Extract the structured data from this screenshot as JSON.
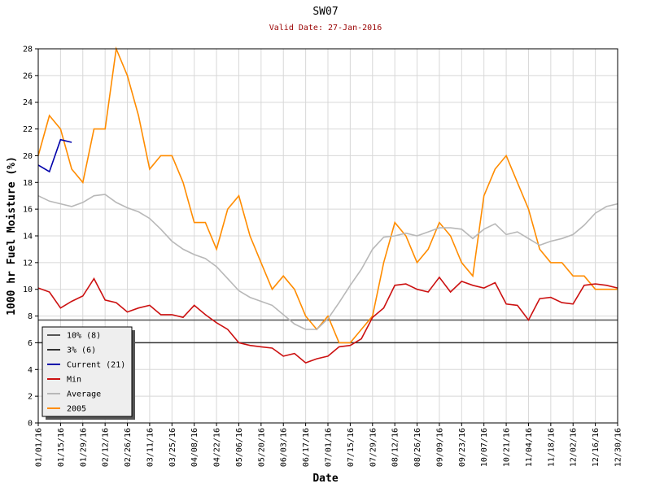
{
  "chart_data": {
    "type": "line",
    "title": "SW07",
    "subtitle": "Valid Date: 27-Jan-2016",
    "x_label": "Date",
    "y_label": "1000 hr Fuel Moisture (%)",
    "ylim": [
      0,
      28
    ],
    "yticks": [
      0,
      2,
      4,
      6,
      8,
      10,
      12,
      14,
      16,
      18,
      20,
      22,
      24,
      26,
      28
    ],
    "xlim": [
      "01/01/16",
      "12/30/16"
    ],
    "xticks": [
      "01/01/16",
      "01/15/16",
      "01/29/16",
      "02/12/16",
      "02/26/16",
      "03/11/16",
      "03/25/16",
      "04/08/16",
      "04/22/16",
      "05/06/16",
      "05/20/16",
      "06/03/16",
      "06/17/16",
      "07/01/16",
      "07/15/16",
      "07/29/16",
      "08/12/16",
      "08/26/16",
      "09/09/16",
      "09/23/16",
      "10/07/16",
      "10/21/16",
      "11/04/16",
      "11/18/16",
      "12/02/16",
      "12/16/16",
      "12/30/16"
    ],
    "grid": true,
    "legend": "lower left",
    "reference_lines": [
      {
        "name": "10% (8)",
        "color": "#555555",
        "value": 7.7
      },
      {
        "name": "3% (6)",
        "color": "#333333",
        "value": 6
      }
    ],
    "x": [
      "01/01/16",
      "01/08/16",
      "01/15/16",
      "01/22/16",
      "01/29/16",
      "02/05/16",
      "02/12/16",
      "02/19/16",
      "02/26/16",
      "03/04/16",
      "03/11/16",
      "03/18/16",
      "03/25/16",
      "04/01/16",
      "04/08/16",
      "04/15/16",
      "04/22/16",
      "04/29/16",
      "05/06/16",
      "05/13/16",
      "05/20/16",
      "05/27/16",
      "06/03/16",
      "06/10/16",
      "06/17/16",
      "06/24/16",
      "07/01/16",
      "07/08/16",
      "07/15/16",
      "07/22/16",
      "07/29/16",
      "08/05/16",
      "08/12/16",
      "08/19/16",
      "08/26/16",
      "09/02/16",
      "09/09/16",
      "09/16/16",
      "09/23/16",
      "09/30/16",
      "10/07/16",
      "10/14/16",
      "10/21/16",
      "10/28/16",
      "11/04/16",
      "11/11/16",
      "11/18/16",
      "11/25/16",
      "12/02/16",
      "12/09/16",
      "12/16/16",
      "12/23/16",
      "12/30/16"
    ],
    "series": [
      {
        "name": "Current (21)",
        "color": "#0000aa",
        "values": [
          19.3,
          18.8,
          21.2,
          21.0,
          null,
          null,
          null,
          null,
          null,
          null,
          null,
          null,
          null,
          null,
          null,
          null,
          null,
          null,
          null,
          null,
          null,
          null,
          null,
          null,
          null,
          null,
          null,
          null,
          null,
          null,
          null,
          null,
          null,
          null,
          null,
          null,
          null,
          null,
          null,
          null,
          null,
          null,
          null,
          null,
          null,
          null,
          null,
          null,
          null,
          null,
          null,
          null,
          null
        ]
      },
      {
        "name": "Min",
        "color": "#cc1111",
        "values": [
          10.1,
          9.8,
          8.6,
          9.1,
          9.5,
          10.8,
          9.2,
          9.0,
          8.3,
          8.6,
          8.8,
          8.1,
          8.1,
          7.9,
          8.8,
          8.1,
          7.5,
          7.0,
          6.0,
          5.8,
          5.7,
          5.6,
          5.0,
          5.2,
          4.5,
          4.8,
          5.0,
          5.7,
          5.8,
          6.3,
          7.9,
          8.6,
          10.3,
          10.4,
          10.0,
          9.8,
          10.9,
          9.8,
          10.6,
          10.3,
          10.1,
          10.5,
          8.9,
          8.8,
          7.7,
          9.3,
          9.4,
          9.0,
          8.9,
          10.3,
          10.4,
          10.3,
          10.1
        ]
      },
      {
        "name": "Average",
        "color": "#b8b8b8",
        "values": [
          17,
          16.6,
          16.4,
          16.2,
          16.5,
          17,
          17.1,
          16.5,
          16.1,
          15.8,
          15.3,
          14.5,
          13.6,
          13.0,
          12.6,
          12.3,
          11.7,
          10.8,
          9.9,
          9.4,
          9.1,
          8.8,
          8.1,
          7.4,
          7.0,
          7.0,
          7.8,
          9.0,
          10.3,
          11.5,
          13.0,
          13.9,
          14.0,
          14.2,
          14.0,
          14.3,
          14.6,
          14.6,
          14.5,
          13.8,
          14.5,
          14.9,
          14.1,
          14.3,
          13.8,
          13.3,
          13.6,
          13.8,
          14.1,
          14.8,
          15.7,
          16.2,
          16.4
        ]
      },
      {
        "name": "2005",
        "color": "#ff8c00",
        "values": [
          20,
          23,
          22,
          19,
          18,
          22,
          22,
          28,
          26,
          23,
          19,
          20,
          20,
          18,
          15,
          15,
          13,
          16,
          17,
          14,
          12,
          10,
          11,
          10,
          8,
          7,
          8,
          6,
          6,
          7,
          8,
          12,
          15,
          14,
          12,
          13,
          15,
          14,
          12,
          11,
          17,
          19,
          20,
          18,
          16,
          13,
          12,
          12,
          11,
          11,
          10,
          10,
          10
        ]
      }
    ]
  }
}
